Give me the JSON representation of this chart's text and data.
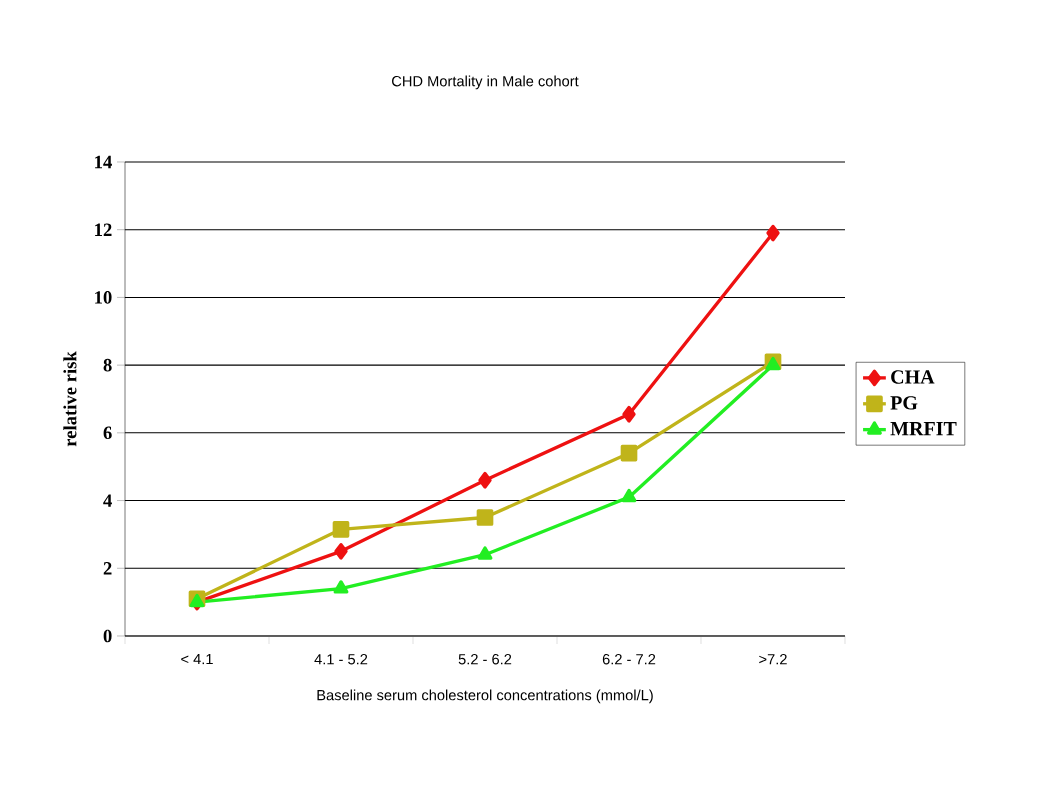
{
  "chart_data": {
    "type": "line",
    "title": "CHD Mortality in Male cohort",
    "xlabel": "Baseline serum cholesterol concentrations (mmol/L)",
    "ylabel": "relative risk",
    "categories": [
      "< 4.1",
      "4.1 - 5.2",
      "5.2 - 6.2",
      "6.2 - 7.2",
      ">7.2"
    ],
    "series": [
      {
        "name": "CHA",
        "color": "#ee1111",
        "marker": "diamond",
        "values": [
          1.0,
          2.5,
          4.6,
          6.55,
          11.9
        ]
      },
      {
        "name": "PG",
        "color": "#c0b41a",
        "marker": "square",
        "values": [
          1.1,
          3.15,
          3.5,
          5.4,
          8.1
        ]
      },
      {
        "name": "MRFIT",
        "color": "#22ee22",
        "marker": "triangle",
        "values": [
          1.0,
          1.4,
          2.4,
          4.1,
          8.0
        ]
      }
    ],
    "ylim": [
      0,
      14
    ],
    "yticks": [
      0,
      2,
      4,
      6,
      8,
      10,
      12,
      14
    ],
    "grid": "y",
    "legend": "right",
    "line_style": "solid"
  }
}
